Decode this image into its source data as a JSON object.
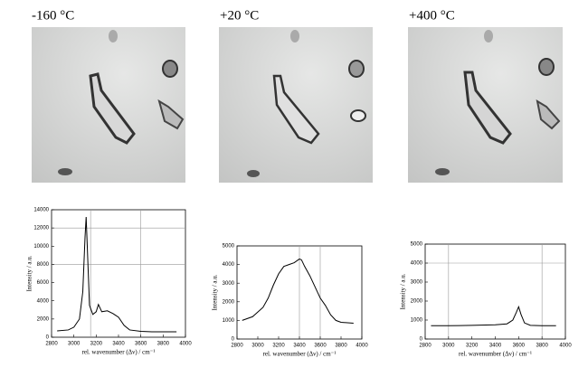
{
  "chart_data": [
    {
      "type": "line",
      "title": "-160 °C",
      "x_label": "rel. wavenumber (Δν) / cm⁻¹",
      "y_label": "Intensity / a.u.",
      "x": [
        2850,
        2950,
        3000,
        3050,
        3080,
        3100,
        3110,
        3120,
        3140,
        3170,
        3200,
        3220,
        3250,
        3300,
        3350,
        3400,
        3450,
        3500,
        3600,
        3700,
        3800,
        3920
      ],
      "series": [
        {
          "color": "#000000",
          "values": [
            700,
            800,
            1100,
            2000,
            5000,
            11000,
            13200,
            10000,
            3500,
            2500,
            2800,
            3600,
            2800,
            2900,
            2600,
            2200,
            1300,
            800,
            650,
            600,
            600,
            600
          ]
        }
      ],
      "xlim": [
        2800,
        4000
      ],
      "xticks": [
        2800,
        3000,
        3200,
        3400,
        3600,
        3800,
        4000
      ],
      "ylim": [
        0,
        14000
      ],
      "yticks": [
        0,
        2000,
        4000,
        6000,
        8000,
        10000,
        12000,
        14000
      ],
      "x_ref_lines": [
        3150,
        3600
      ],
      "y_ref_lines": [
        8000,
        12000
      ]
    },
    {
      "type": "line",
      "title": "+20 °C",
      "x_label": "rel. wavenumber (Δν) / cm⁻¹",
      "y_label": "Intensity / a.u.",
      "x": [
        2850,
        2950,
        3050,
        3100,
        3150,
        3200,
        3250,
        3300,
        3350,
        3400,
        3420,
        3450,
        3500,
        3550,
        3600,
        3650,
        3700,
        3750,
        3800,
        3920
      ],
      "series": [
        {
          "color": "#000000",
          "values": [
            1000,
            1200,
            1700,
            2200,
            2900,
            3500,
            3900,
            4000,
            4100,
            4300,
            4250,
            3900,
            3400,
            2800,
            2200,
            1800,
            1300,
            1000,
            900,
            850
          ]
        }
      ],
      "xlim": [
        2800,
        4000
      ],
      "xticks": [
        2800,
        3000,
        3200,
        3400,
        3600,
        3800,
        4000
      ],
      "ylim": [
        0,
        5000
      ],
      "yticks": [
        0,
        1000,
        2000,
        3000,
        4000,
        5000
      ],
      "x_ref_lines": [
        3400,
        3600
      ],
      "y_ref_lines": []
    },
    {
      "type": "line",
      "title": "+400 °C",
      "x_label": "rel. wavenumber (Δν) / cm⁻¹",
      "y_label": "Intensity / a.u.",
      "x": [
        2850,
        3000,
        3200,
        3400,
        3500,
        3550,
        3580,
        3600,
        3620,
        3650,
        3700,
        3800,
        3920
      ],
      "series": [
        {
          "color": "#000000",
          "values": [
            700,
            700,
            720,
            750,
            800,
            1000,
            1400,
            1700,
            1300,
            850,
            720,
            700,
            700
          ]
        }
      ],
      "xlim": [
        2800,
        4000
      ],
      "xticks": [
        2800,
        3000,
        3200,
        3400,
        3600,
        3800,
        4000
      ],
      "ylim": [
        0,
        5000
      ],
      "yticks": [
        0,
        1000,
        2000,
        3000,
        4000,
        5000
      ],
      "x_ref_lines": [
        3000,
        3800
      ],
      "y_ref_lines": [
        4000
      ]
    }
  ]
}
